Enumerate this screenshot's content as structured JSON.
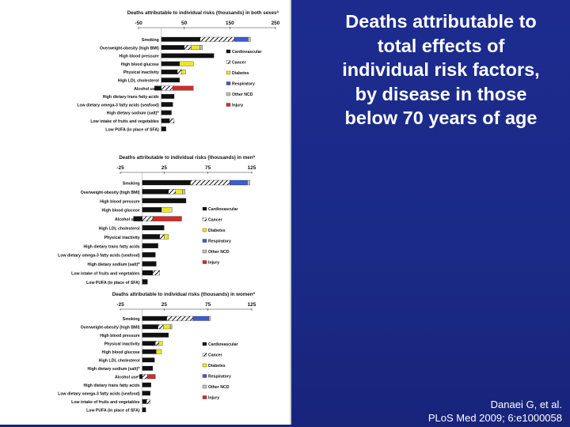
{
  "slide": {
    "title": "Deaths attributable to total effects of individual risk factors, by disease in those below 70 years of age",
    "citation_line1": "Danaei G, et al.",
    "citation_line2": "PLoS Med 2009; 6:e1000058"
  },
  "colors": {
    "background": "#1d2b8f",
    "Cardiovascular": "#111111",
    "Cancer": "hatched",
    "Diabetes": "#e8e82a",
    "Respiratory": "#3d5bd6",
    "Other NCD": "#bfbfbf",
    "Injury": "#d42a2a"
  },
  "chart_data": [
    {
      "type": "bar",
      "orientation": "horizontal",
      "stacked": true,
      "title": "Deaths attributable to individual risks (thousands) in both sexes",
      "title_marker": "a",
      "xlim": [
        -50,
        250
      ],
      "xticks": [
        "-50",
        "50",
        "150",
        "250"
      ],
      "categories": [
        "Smoking",
        "Overweight-obesity (high BMI)",
        "High blood pressure",
        "High blood glucose",
        "Physical inactivity",
        "High LDL cholesterol",
        "Alcohol use",
        "High dietary trans fatty acids",
        "Low dietary omega-3 fatty acids (seafood)",
        "High dietary sodium (salt)",
        "Low intake of fruits and vegetables",
        "Low PUFA (in place of SFA)"
      ],
      "category_markers": {
        "Alcohol use": "c",
        "High dietary sodium (salt)": "b"
      },
      "legend": [
        "Cardiovascular",
        "Cancer",
        "Diabetes",
        "Respiratory",
        "Other NCD",
        "Injury"
      ],
      "legend_position": "right",
      "series": [
        {
          "name": "Cardiovascular",
          "values": [
            85,
            50,
            115,
            40,
            35,
            40,
            -15,
            28,
            25,
            22,
            18,
            10
          ]
        },
        {
          "name": "Cancer",
          "values": [
            75,
            15,
            0,
            0,
            10,
            0,
            25,
            0,
            0,
            0,
            10,
            0
          ]
        },
        {
          "name": "Diabetes",
          "values": [
            0,
            20,
            0,
            30,
            8,
            0,
            0,
            0,
            0,
            0,
            0,
            0
          ]
        },
        {
          "name": "Respiratory",
          "values": [
            30,
            0,
            0,
            0,
            0,
            0,
            0,
            0,
            0,
            0,
            0,
            0
          ]
        },
        {
          "name": "Other NCD",
          "values": [
            5,
            5,
            0,
            0,
            0,
            0,
            0,
            0,
            0,
            0,
            0,
            0
          ]
        },
        {
          "name": "Injury",
          "values": [
            0,
            0,
            0,
            0,
            0,
            0,
            45,
            0,
            0,
            0,
            0,
            0
          ]
        }
      ]
    },
    {
      "type": "bar",
      "orientation": "horizontal",
      "stacked": true,
      "title": "Deaths attributable to individual risks (thousands) in men",
      "title_marker": "a",
      "xlim": [
        -25,
        125
      ],
      "xticks": [
        "-25",
        "25",
        "75",
        "125"
      ],
      "categories": [
        "Smoking",
        "Overweight-obesity (high BMI)",
        "High blood pressure",
        "High blood glucose",
        "Alcohol use",
        "High LDL cholesterol",
        "Physical inactivity",
        "High dietary trans fatty acids",
        "Low dietary omega-3 fatty acids (seafood)",
        "High dietary sodium (salt)",
        "Low intake of fruits and vegetables",
        "Low PUFA (in place of SFA)"
      ],
      "category_markers": {
        "Alcohol use": "c",
        "High dietary sodium (salt)": "b"
      },
      "legend": [
        "Cardiovascular",
        "Cancer",
        "Diabetes",
        "Respiratory",
        "Other NCD",
        "Injury"
      ],
      "legend_position": "right",
      "series": [
        {
          "name": "Cardiovascular",
          "values": [
            55,
            30,
            50,
            22,
            -10,
            25,
            20,
            18,
            15,
            16,
            12,
            6
          ]
        },
        {
          "name": "Cancer",
          "values": [
            45,
            8,
            0,
            0,
            12,
            0,
            5,
            0,
            0,
            0,
            8,
            0
          ]
        },
        {
          "name": "Diabetes",
          "values": [
            0,
            8,
            0,
            12,
            0,
            0,
            5,
            0,
            0,
            0,
            0,
            0
          ]
        },
        {
          "name": "Respiratory",
          "values": [
            20,
            0,
            0,
            0,
            0,
            0,
            0,
            0,
            0,
            0,
            0,
            0
          ]
        },
        {
          "name": "Other NCD",
          "values": [
            3,
            3,
            0,
            0,
            0,
            0,
            0,
            0,
            0,
            0,
            0,
            0
          ]
        },
        {
          "name": "Injury",
          "values": [
            0,
            0,
            0,
            0,
            33,
            0,
            0,
            0,
            0,
            0,
            0,
            0
          ]
        }
      ]
    },
    {
      "type": "bar",
      "orientation": "horizontal",
      "stacked": true,
      "title": "Deaths attributable to individual risks (thousands) in women",
      "title_marker": "a",
      "xlim": [
        -25,
        125
      ],
      "xticks": [
        "-25",
        "25",
        "75",
        "125"
      ],
      "categories": [
        "Smoking",
        "Overweight-obesity (high BMI)",
        "High blood pressure",
        "Physical inactivity",
        "High blood glucose",
        "High LDL cholesterol",
        "High dietary sodium (salt)",
        "Alcohol use",
        "High dietary trans fatty acids",
        "Low dietary omega-3 fatty acids (seafood)",
        "Low intake of fruits and vegetables",
        "Low PUFA (in place of SFA)"
      ],
      "category_markers": {
        "High dietary sodium (salt)": "b",
        "Alcohol use": "c"
      },
      "legend": [
        "Cardiovascular",
        "Cancer",
        "Diabetes",
        "Respiratory",
        "Other NCD",
        "Injury"
      ],
      "legend_position": "right",
      "series": [
        {
          "name": "Cardiovascular",
          "values": [
            28,
            18,
            30,
            15,
            16,
            14,
            12,
            -3,
            10,
            9,
            5,
            4
          ]
        },
        {
          "name": "Cancer",
          "values": [
            30,
            6,
            0,
            4,
            0,
            0,
            0,
            6,
            0,
            0,
            4,
            0
          ]
        },
        {
          "name": "Diabetes",
          "values": [
            0,
            8,
            0,
            4,
            6,
            0,
            0,
            0,
            0,
            0,
            0,
            0
          ]
        },
        {
          "name": "Respiratory",
          "values": [
            18,
            0,
            0,
            0,
            0,
            0,
            0,
            0,
            0,
            0,
            0,
            0
          ]
        },
        {
          "name": "Other NCD",
          "values": [
            2,
            2,
            0,
            0,
            0,
            0,
            0,
            0,
            0,
            0,
            0,
            0
          ]
        },
        {
          "name": "Injury",
          "values": [
            0,
            0,
            0,
            0,
            0,
            0,
            0,
            9,
            0,
            0,
            0,
            0
          ]
        }
      ]
    }
  ]
}
